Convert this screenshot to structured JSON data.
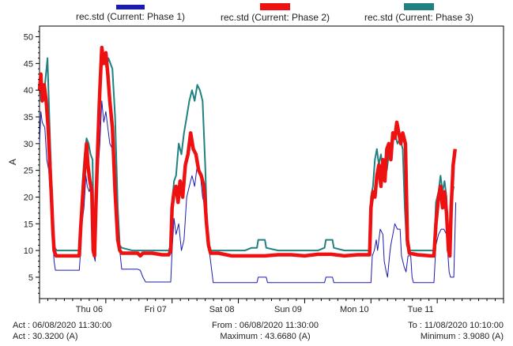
{
  "chart_data": {
    "type": "line",
    "ylabel": "A",
    "ylim": [
      1,
      52
    ],
    "yticks": [
      5,
      10,
      15,
      20,
      25,
      30,
      35,
      40,
      45,
      50
    ],
    "xlim": [
      0,
      7.0
    ],
    "xticks": [
      {
        "x": 0.75,
        "label": "Thu  06"
      },
      {
        "x": 1.75,
        "label": "Fri  07"
      },
      {
        "x": 2.75,
        "label": "Sat  08"
      },
      {
        "x": 3.75,
        "label": "Sun  09"
      },
      {
        "x": 4.75,
        "label": "Mon  10"
      },
      {
        "x": 5.75,
        "label": "Tue  11"
      }
    ],
    "grid": false,
    "series": [
      {
        "name": "rec.std (Current: Phase 1)",
        "color": "#1b1bb0",
        "points": [
          [
            0.0,
            30
          ],
          [
            0.02,
            36
          ],
          [
            0.04,
            34
          ],
          [
            0.08,
            33
          ],
          [
            0.11,
            27
          ],
          [
            0.14,
            25
          ],
          [
            0.17,
            18
          ],
          [
            0.2,
            12
          ],
          [
            0.22,
            8
          ],
          [
            0.24,
            6.3
          ],
          [
            0.4,
            6.3
          ],
          [
            0.6,
            6.3
          ],
          [
            0.62,
            10
          ],
          [
            0.64,
            15
          ],
          [
            0.67,
            18
          ],
          [
            0.7,
            24
          ],
          [
            0.72,
            22
          ],
          [
            0.75,
            21
          ],
          [
            0.78,
            23
          ],
          [
            0.8,
            21
          ],
          [
            0.82,
            9
          ],
          [
            0.84,
            8
          ],
          [
            0.86,
            20
          ],
          [
            0.88,
            24
          ],
          [
            0.91,
            30
          ],
          [
            0.94,
            38
          ],
          [
            0.97,
            34
          ],
          [
            1.0,
            36
          ],
          [
            1.03,
            33
          ],
          [
            1.06,
            30
          ],
          [
            1.1,
            29
          ],
          [
            1.14,
            21
          ],
          [
            1.18,
            12
          ],
          [
            1.21,
            10
          ],
          [
            1.24,
            6.5
          ],
          [
            1.3,
            6.5
          ],
          [
            1.48,
            6.5
          ],
          [
            1.52,
            6.3
          ],
          [
            1.56,
            5
          ],
          [
            1.6,
            4.1
          ],
          [
            1.8,
            4.1
          ],
          [
            1.98,
            4.1
          ],
          [
            2.0,
            10
          ],
          [
            2.03,
            16
          ],
          [
            2.06,
            13
          ],
          [
            2.1,
            15
          ],
          [
            2.14,
            10
          ],
          [
            2.18,
            12
          ],
          [
            2.22,
            20
          ],
          [
            2.26,
            22
          ],
          [
            2.3,
            24
          ],
          [
            2.34,
            22
          ],
          [
            2.38,
            26
          ],
          [
            2.42,
            25
          ],
          [
            2.46,
            20
          ],
          [
            2.5,
            18
          ],
          [
            2.54,
            12
          ],
          [
            2.58,
            8
          ],
          [
            2.62,
            4
          ],
          [
            2.8,
            4
          ],
          [
            3.2,
            4
          ],
          [
            3.28,
            4
          ],
          [
            3.3,
            5
          ],
          [
            3.42,
            5
          ],
          [
            3.44,
            4
          ],
          [
            3.8,
            4
          ],
          [
            4.3,
            4
          ],
          [
            4.32,
            5
          ],
          [
            4.42,
            5
          ],
          [
            4.44,
            4
          ],
          [
            4.8,
            4
          ],
          [
            5.0,
            4
          ],
          [
            5.02,
            9
          ],
          [
            5.05,
            10
          ],
          [
            5.08,
            12
          ],
          [
            5.1,
            10
          ],
          [
            5.14,
            14
          ],
          [
            5.18,
            13
          ],
          [
            5.2,
            8
          ],
          [
            5.23,
            6
          ],
          [
            5.25,
            5
          ],
          [
            5.28,
            9
          ],
          [
            5.3,
            11
          ],
          [
            5.33,
            13
          ],
          [
            5.36,
            15
          ],
          [
            5.4,
            14
          ],
          [
            5.44,
            14
          ],
          [
            5.46,
            9
          ],
          [
            5.5,
            7
          ],
          [
            5.53,
            6
          ],
          [
            5.56,
            9
          ],
          [
            5.6,
            9
          ],
          [
            5.62,
            5
          ],
          [
            5.64,
            4
          ],
          [
            5.9,
            4
          ],
          [
            5.95,
            4
          ],
          [
            5.98,
            11
          ],
          [
            6.02,
            13
          ],
          [
            6.06,
            14
          ],
          [
            6.1,
            14
          ],
          [
            6.14,
            13
          ],
          [
            6.18,
            6
          ],
          [
            6.2,
            5
          ],
          [
            6.25,
            5
          ],
          [
            6.28,
            19
          ]
        ]
      },
      {
        "name": "rec.std (Current: Phase 2)",
        "color": "#ee1111",
        "points": [
          [
            0.0,
            40
          ],
          [
            0.02,
            43
          ],
          [
            0.04,
            38
          ],
          [
            0.07,
            41
          ],
          [
            0.1,
            38
          ],
          [
            0.13,
            33
          ],
          [
            0.16,
            25
          ],
          [
            0.18,
            20
          ],
          [
            0.2,
            14
          ],
          [
            0.22,
            10
          ],
          [
            0.25,
            9
          ],
          [
            0.4,
            9
          ],
          [
            0.6,
            9
          ],
          [
            0.62,
            14
          ],
          [
            0.65,
            20
          ],
          [
            0.68,
            25
          ],
          [
            0.71,
            30
          ],
          [
            0.73,
            26
          ],
          [
            0.76,
            23
          ],
          [
            0.79,
            21
          ],
          [
            0.81,
            10
          ],
          [
            0.83,
            9
          ],
          [
            0.85,
            18
          ],
          [
            0.88,
            30
          ],
          [
            0.91,
            40
          ],
          [
            0.94,
            48
          ],
          [
            0.97,
            45
          ],
          [
            1.0,
            47
          ],
          [
            1.03,
            43
          ],
          [
            1.06,
            38
          ],
          [
            1.1,
            33
          ],
          [
            1.14,
            21
          ],
          [
            1.18,
            12
          ],
          [
            1.21,
            10
          ],
          [
            1.24,
            9.5
          ],
          [
            1.3,
            9.5
          ],
          [
            1.48,
            9.5
          ],
          [
            1.52,
            9
          ],
          [
            1.56,
            9.5
          ],
          [
            1.7,
            9.5
          ],
          [
            1.85,
            9.2
          ],
          [
            1.95,
            9.2
          ],
          [
            1.98,
            10
          ],
          [
            2.0,
            18
          ],
          [
            2.03,
            21
          ],
          [
            2.06,
            22
          ],
          [
            2.09,
            19
          ],
          [
            2.12,
            23
          ],
          [
            2.16,
            20
          ],
          [
            2.2,
            26
          ],
          [
            2.24,
            28
          ],
          [
            2.28,
            32
          ],
          [
            2.32,
            29
          ],
          [
            2.36,
            28
          ],
          [
            2.4,
            25
          ],
          [
            2.44,
            24
          ],
          [
            2.48,
            22
          ],
          [
            2.52,
            15
          ],
          [
            2.55,
            11
          ],
          [
            2.58,
            9.5
          ],
          [
            2.7,
            9.5
          ],
          [
            2.9,
            9
          ],
          [
            3.1,
            9
          ],
          [
            3.3,
            9
          ],
          [
            3.4,
            9
          ],
          [
            3.6,
            9.2
          ],
          [
            3.8,
            9.2
          ],
          [
            4.0,
            9
          ],
          [
            4.2,
            9.3
          ],
          [
            4.4,
            9.3
          ],
          [
            4.6,
            9
          ],
          [
            4.8,
            9.2
          ],
          [
            4.98,
            9.2
          ],
          [
            5.0,
            18
          ],
          [
            5.03,
            21
          ],
          [
            5.06,
            20
          ],
          [
            5.09,
            24
          ],
          [
            5.12,
            26
          ],
          [
            5.15,
            22
          ],
          [
            5.18,
            27
          ],
          [
            5.21,
            23
          ],
          [
            5.24,
            29
          ],
          [
            5.27,
            30
          ],
          [
            5.3,
            27
          ],
          [
            5.33,
            32
          ],
          [
            5.36,
            31
          ],
          [
            5.39,
            34
          ],
          [
            5.42,
            32
          ],
          [
            5.45,
            30
          ],
          [
            5.48,
            32
          ],
          [
            5.52,
            30
          ],
          [
            5.55,
            12
          ],
          [
            5.58,
            9.5
          ],
          [
            5.7,
            9.2
          ],
          [
            5.9,
            9
          ],
          [
            5.95,
            9
          ],
          [
            5.98,
            15
          ],
          [
            6.02,
            20
          ],
          [
            6.05,
            22
          ],
          [
            6.08,
            18
          ],
          [
            6.11,
            21
          ],
          [
            6.14,
            17
          ],
          [
            6.17,
            10
          ],
          [
            6.19,
            9
          ],
          [
            6.21,
            18
          ],
          [
            6.24,
            26
          ],
          [
            6.27,
            29
          ]
        ]
      },
      {
        "name": "rec.std (Current: Phase 3)",
        "color": "#218080",
        "points": [
          [
            0.0,
            38
          ],
          [
            0.03,
            41
          ],
          [
            0.06,
            38
          ],
          [
            0.09,
            42
          ],
          [
            0.12,
            46
          ],
          [
            0.15,
            34
          ],
          [
            0.18,
            23
          ],
          [
            0.2,
            15
          ],
          [
            0.23,
            10.5
          ],
          [
            0.26,
            10
          ],
          [
            0.4,
            10
          ],
          [
            0.6,
            10
          ],
          [
            0.62,
            15
          ],
          [
            0.65,
            23
          ],
          [
            0.68,
            28
          ],
          [
            0.71,
            31
          ],
          [
            0.74,
            30
          ],
          [
            0.77,
            28
          ],
          [
            0.8,
            27
          ],
          [
            0.82,
            11
          ],
          [
            0.84,
            10
          ],
          [
            0.86,
            24
          ],
          [
            0.89,
            35
          ],
          [
            0.92,
            44
          ],
          [
            0.95,
            45
          ],
          [
            0.98,
            47
          ],
          [
            1.01,
            44
          ],
          [
            1.04,
            46
          ],
          [
            1.07,
            45
          ],
          [
            1.1,
            44
          ],
          [
            1.14,
            35
          ],
          [
            1.18,
            18
          ],
          [
            1.21,
            11
          ],
          [
            1.24,
            10.5
          ],
          [
            1.4,
            10
          ],
          [
            1.55,
            10
          ],
          [
            1.7,
            10
          ],
          [
            1.85,
            10
          ],
          [
            1.95,
            10
          ],
          [
            1.98,
            11
          ],
          [
            2.0,
            19
          ],
          [
            2.03,
            23
          ],
          [
            2.06,
            24
          ],
          [
            2.1,
            30
          ],
          [
            2.14,
            28
          ],
          [
            2.18,
            32
          ],
          [
            2.22,
            35
          ],
          [
            2.26,
            38
          ],
          [
            2.3,
            40
          ],
          [
            2.34,
            38
          ],
          [
            2.38,
            41
          ],
          [
            2.42,
            40
          ],
          [
            2.46,
            38
          ],
          [
            2.5,
            26
          ],
          [
            2.53,
            14
          ],
          [
            2.56,
            10
          ],
          [
            2.7,
            10
          ],
          [
            2.9,
            10
          ],
          [
            3.1,
            10
          ],
          [
            3.2,
            10.5
          ],
          [
            3.28,
            10.5
          ],
          [
            3.3,
            12
          ],
          [
            3.4,
            12
          ],
          [
            3.42,
            10.5
          ],
          [
            3.6,
            10
          ],
          [
            3.8,
            10
          ],
          [
            4.0,
            10
          ],
          [
            4.2,
            10
          ],
          [
            4.3,
            10.5
          ],
          [
            4.32,
            12
          ],
          [
            4.42,
            12
          ],
          [
            4.44,
            10.5
          ],
          [
            4.6,
            10
          ],
          [
            4.8,
            10
          ],
          [
            4.98,
            10
          ],
          [
            5.0,
            20
          ],
          [
            5.03,
            22
          ],
          [
            5.06,
            27
          ],
          [
            5.09,
            29
          ],
          [
            5.12,
            26
          ],
          [
            5.15,
            28
          ],
          [
            5.18,
            25
          ],
          [
            5.21,
            27
          ],
          [
            5.24,
            25
          ],
          [
            5.27,
            28
          ],
          [
            5.3,
            27
          ],
          [
            5.33,
            31
          ],
          [
            5.36,
            32
          ],
          [
            5.4,
            30
          ],
          [
            5.44,
            31
          ],
          [
            5.48,
            29
          ],
          [
            5.51,
            18
          ],
          [
            5.54,
            11
          ],
          [
            5.57,
            10
          ],
          [
            5.75,
            10
          ],
          [
            5.9,
            10
          ],
          [
            5.95,
            10
          ],
          [
            5.98,
            19
          ],
          [
            6.02,
            21
          ],
          [
            6.05,
            24
          ],
          [
            6.08,
            21
          ],
          [
            6.11,
            23
          ],
          [
            6.14,
            20
          ],
          [
            6.17,
            11
          ],
          [
            6.19,
            10
          ],
          [
            6.22,
            20
          ],
          [
            6.25,
            22
          ]
        ]
      }
    ]
  },
  "footer": {
    "act_time": "Act : 06/08/2020 11:30:00",
    "act_value": "Act : 30.3200 (A)",
    "from": "From : 06/08/2020 11:30:00",
    "maximum": "Maximum : 43.6680 (A)",
    "to": "To : 11/08/2020 10:10:00",
    "minimum": "Minimum : 3.9080 (A)"
  }
}
